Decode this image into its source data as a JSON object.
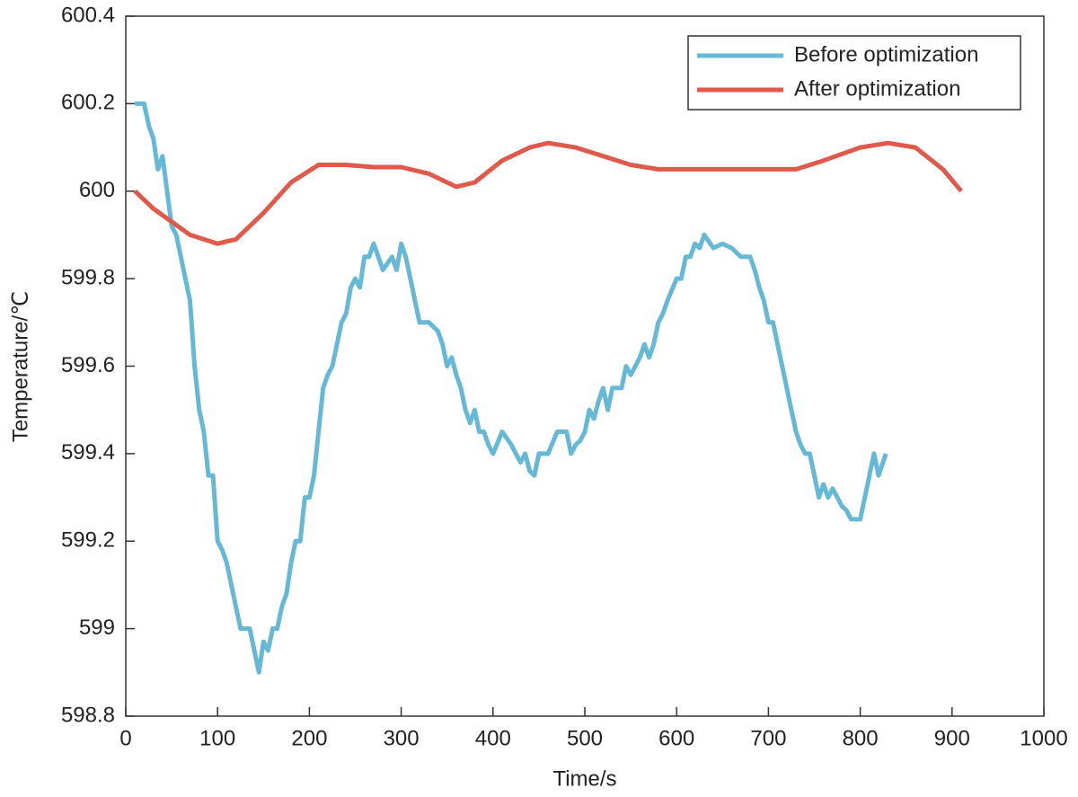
{
  "chart_data": {
    "type": "line",
    "xlabel": "Time/s",
    "ylabel": "Temperature/℃",
    "xlim": [
      0,
      1000
    ],
    "xticks": [
      0,
      100,
      200,
      300,
      400,
      500,
      600,
      700,
      800,
      900,
      1000
    ],
    "ylim": [
      598.8,
      600.4
    ],
    "yticks": [
      598.8,
      599,
      599.2,
      599.4,
      599.6,
      599.8,
      600,
      600.2,
      600.4
    ],
    "grid": false,
    "legend": "top-right",
    "series": [
      {
        "name": "Before optimization",
        "color": "#66b9d6",
        "x": [
          10,
          20,
          25,
          30,
          35,
          40,
          45,
          50,
          55,
          60,
          65,
          70,
          75,
          80,
          85,
          90,
          95,
          100,
          105,
          110,
          115,
          120,
          125,
          135,
          140,
          145,
          150,
          155,
          160,
          165,
          170,
          175,
          180,
          185,
          190,
          195,
          200,
          205,
          210,
          215,
          220,
          225,
          230,
          235,
          240,
          245,
          250,
          255,
          260,
          265,
          270,
          275,
          280,
          290,
          295,
          300,
          305,
          310,
          315,
          320,
          330,
          340,
          345,
          350,
          355,
          360,
          365,
          370,
          375,
          380,
          385,
          390,
          395,
          400,
          410,
          420,
          425,
          430,
          435,
          440,
          445,
          450,
          460,
          470,
          480,
          485,
          490,
          495,
          500,
          505,
          510,
          515,
          520,
          525,
          530,
          540,
          545,
          550,
          555,
          560,
          565,
          570,
          575,
          580,
          585,
          590,
          600,
          605,
          610,
          615,
          620,
          625,
          630,
          640,
          650,
          660,
          670,
          680,
          685,
          690,
          695,
          700,
          705,
          710,
          715,
          720,
          725,
          730,
          735,
          740,
          745,
          750,
          755,
          760,
          765,
          770,
          775,
          780,
          785,
          790,
          800,
          805,
          810,
          815,
          820,
          828
        ],
        "values": [
          600.2,
          600.2,
          600.15,
          600.12,
          600.05,
          600.08,
          600.0,
          599.92,
          599.9,
          599.85,
          599.8,
          599.75,
          599.6,
          599.5,
          599.45,
          599.35,
          599.35,
          599.2,
          599.18,
          599.15,
          599.1,
          599.05,
          599.0,
          599.0,
          598.95,
          598.9,
          598.97,
          598.95,
          599.0,
          599.0,
          599.05,
          599.08,
          599.15,
          599.2,
          599.2,
          599.3,
          599.3,
          599.35,
          599.45,
          599.55,
          599.58,
          599.6,
          599.65,
          599.7,
          599.72,
          599.78,
          599.8,
          599.78,
          599.85,
          599.85,
          599.88,
          599.85,
          599.82,
          599.85,
          599.82,
          599.88,
          599.85,
          599.8,
          599.75,
          599.7,
          599.7,
          599.68,
          599.65,
          599.6,
          599.62,
          599.58,
          599.55,
          599.5,
          599.47,
          599.5,
          599.45,
          599.45,
          599.42,
          599.4,
          599.45,
          599.42,
          599.4,
          599.38,
          599.4,
          599.36,
          599.35,
          599.4,
          599.4,
          599.45,
          599.45,
          599.4,
          599.42,
          599.43,
          599.45,
          599.5,
          599.48,
          599.52,
          599.55,
          599.5,
          599.55,
          599.55,
          599.6,
          599.58,
          599.6,
          599.62,
          599.65,
          599.62,
          599.65,
          599.7,
          599.72,
          599.75,
          599.8,
          599.8,
          599.85,
          599.85,
          599.88,
          599.87,
          599.9,
          599.87,
          599.88,
          599.87,
          599.85,
          599.85,
          599.82,
          599.78,
          599.75,
          599.7,
          599.7,
          599.65,
          599.6,
          599.55,
          599.5,
          599.45,
          599.42,
          599.4,
          599.4,
          599.35,
          599.3,
          599.33,
          599.3,
          599.32,
          599.3,
          599.28,
          599.27,
          599.25,
          599.25,
          599.3,
          599.35,
          599.4,
          599.35,
          599.4
        ]
      },
      {
        "name": "After optimization",
        "color": "#e05a4b",
        "x": [
          10,
          30,
          50,
          70,
          100,
          120,
          150,
          180,
          210,
          240,
          270,
          300,
          330,
          360,
          380,
          410,
          440,
          460,
          490,
          520,
          550,
          580,
          620,
          660,
          700,
          730,
          760,
          800,
          830,
          860,
          890,
          910
        ],
        "values": [
          600.0,
          599.96,
          599.93,
          599.9,
          599.88,
          599.89,
          599.95,
          600.02,
          600.06,
          600.06,
          600.055,
          600.055,
          600.04,
          600.01,
          600.02,
          600.07,
          600.1,
          600.11,
          600.1,
          600.08,
          600.06,
          600.05,
          600.05,
          600.05,
          600.05,
          600.05,
          600.07,
          600.1,
          600.11,
          600.1,
          600.05,
          600.0
        ]
      }
    ]
  }
}
